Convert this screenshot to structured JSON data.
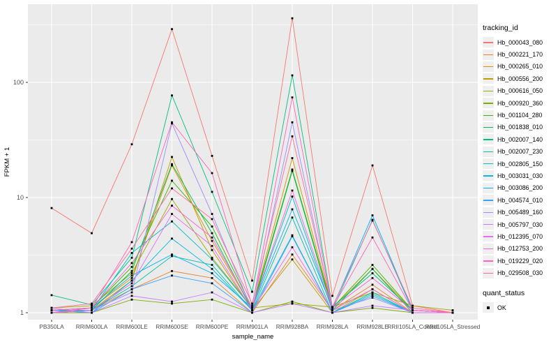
{
  "figure": {
    "background": "#FFFFFF",
    "panel_background": "#EBEBEB",
    "gridline_color": "#FFFFFF",
    "tick_label_color": "#4D4D4D",
    "axis_title_color": "#000000",
    "point_color": "#000000"
  },
  "axes": {
    "x_title": "sample_name",
    "y_title": "FPKM + 1",
    "y_tick_labels": [
      "1",
      "10",
      "100"
    ],
    "y_tick_values": [
      1,
      10,
      100
    ],
    "y_minor_values": [
      3.1623,
      31.623,
      316.23
    ]
  },
  "legend": {
    "tracking_title": "tracking_id",
    "quant_title": "quant_status",
    "quant_items": [
      {
        "label": "OK",
        "marker": "black-square"
      }
    ]
  },
  "chart_data": {
    "type": "line",
    "x_type": "categorical",
    "title": "",
    "xlabel": "sample_name",
    "ylabel": "FPKM + 1",
    "y_scale": "log10",
    "ylim": [
      1,
      400
    ],
    "grid": true,
    "legend_position": "right",
    "point_marker": "black-square",
    "quant_status": "OK",
    "categories": [
      "PB350LA",
      "RRIM600LA",
      "RRIM600LE",
      "RRIM600SE",
      "RRIM600PE",
      "RRIM901LA",
      "RRIM928BA",
      "RRIM928LA",
      "RRIM928LE",
      "RRII105LA_Control",
      "RRII105LA_Stressed"
    ],
    "series": [
      {
        "name": "Hb_000043_080",
        "color": "#F8766D",
        "values": [
          8.1,
          4.9,
          29,
          290,
          23,
          1.9,
          360,
          1.4,
          19,
          1.15,
          1.0
        ]
      },
      {
        "name": "Hb_000221_170",
        "color": "#EA8331",
        "values": [
          1.0,
          1.05,
          1.6,
          2.3,
          2.0,
          1.0,
          3.2,
          1.05,
          1.75,
          1.0,
          1.0
        ]
      },
      {
        "name": "Hb_000265_010",
        "color": "#D89000",
        "values": [
          1.05,
          1.1,
          2.0,
          19,
          4.2,
          1.1,
          22,
          1.1,
          2.4,
          1.05,
          1.0
        ]
      },
      {
        "name": "Hb_000556_200",
        "color": "#C09B00",
        "values": [
          1.0,
          1.05,
          1.9,
          22.5,
          3.5,
          1.05,
          2.9,
          1.0,
          1.6,
          1.0,
          1.0
        ]
      },
      {
        "name": "Hb_000616_050",
        "color": "#A3A500",
        "values": [
          1.1,
          1.15,
          2.2,
          9.7,
          3.0,
          1.1,
          1.2,
          1.12,
          1.5,
          1.15,
          1.05
        ]
      },
      {
        "name": "Hb_000920_360",
        "color": "#7CAE00",
        "values": [
          1.0,
          1.0,
          1.3,
          1.2,
          1.3,
          1.0,
          1.25,
          1.0,
          1.1,
          1.0,
          1.0
        ]
      },
      {
        "name": "Hb_001104_280",
        "color": "#39B600",
        "values": [
          1.05,
          1.1,
          2.5,
          14,
          5.6,
          1.1,
          17.5,
          1.1,
          2.6,
          1.05,
          1.0
        ]
      },
      {
        "name": "Hb_001838_010",
        "color": "#00BB4E",
        "values": [
          1.0,
          1.05,
          2.3,
          19.5,
          4.9,
          1.05,
          17,
          1.05,
          2.4,
          1.0,
          1.0
        ]
      },
      {
        "name": "Hb_002007_140",
        "color": "#00BF7D",
        "values": [
          1.42,
          1.17,
          3.0,
          77,
          11.2,
          1.52,
          115,
          1.12,
          2.2,
          1.05,
          1.0
        ]
      },
      {
        "name": "Hb_002007_230",
        "color": "#00C1A3",
        "values": [
          1.05,
          1.05,
          1.7,
          3.1,
          2.6,
          1.05,
          6.7,
          1.0,
          1.5,
          1.0,
          1.0
        ]
      },
      {
        "name": "Hb_002805_150",
        "color": "#00BFC4",
        "values": [
          1.0,
          1.05,
          3.3,
          6.2,
          2.9,
          1.1,
          10.2,
          1.05,
          6.4,
          1.05,
          1.0
        ]
      },
      {
        "name": "Hb_003031_030",
        "color": "#00BAE0",
        "values": [
          1.05,
          1.0,
          1.9,
          4.4,
          2.4,
          1.05,
          4.7,
          1.0,
          1.45,
          1.0,
          1.0
        ]
      },
      {
        "name": "Hb_003086_200",
        "color": "#00B0F6",
        "values": [
          1.0,
          1.1,
          2.1,
          3.2,
          2.2,
          1.1,
          7.9,
          1.1,
          7.0,
          1.05,
          1.0
        ]
      },
      {
        "name": "Hb_004574_010",
        "color": "#35A2FF",
        "values": [
          1.05,
          1.0,
          1.6,
          2.1,
          1.8,
          1.0,
          4.6,
          1.0,
          1.4,
          1.0,
          1.0
        ]
      },
      {
        "name": "Hb_005489_160",
        "color": "#9590FF",
        "values": [
          1.0,
          1.05,
          1.5,
          44,
          7.2,
          1.05,
          45,
          1.05,
          1.35,
          1.0,
          1.0
        ]
      },
      {
        "name": "Hb_005797_030",
        "color": "#C77CFF",
        "values": [
          1.1,
          1.0,
          1.4,
          1.25,
          1.5,
          1.0,
          1.2,
          1.0,
          1.15,
          1.05,
          1.0
        ]
      },
      {
        "name": "Hb_012395_070",
        "color": "#E76BF3",
        "values": [
          1.0,
          1.05,
          1.8,
          7.2,
          3.8,
          1.05,
          3.7,
          1.05,
          1.6,
          1.0,
          1.0
        ]
      },
      {
        "name": "Hb_012753_200",
        "color": "#FA62DB",
        "values": [
          1.05,
          1.1,
          2.7,
          8.5,
          4.5,
          1.1,
          11.5,
          1.1,
          2.0,
          1.05,
          1.0
        ]
      },
      {
        "name": "Hb_019229_020",
        "color": "#FF62BC",
        "values": [
          1.0,
          1.1,
          4.1,
          45,
          16.3,
          1.15,
          74,
          1.1,
          4.5,
          1.05,
          1.0
        ]
      },
      {
        "name": "Hb_029508_030",
        "color": "#FF6A98",
        "values": [
          1.1,
          1.2,
          3.6,
          12,
          6.5,
          1.2,
          34,
          1.12,
          6.3,
          1.1,
          1.0
        ]
      }
    ]
  }
}
